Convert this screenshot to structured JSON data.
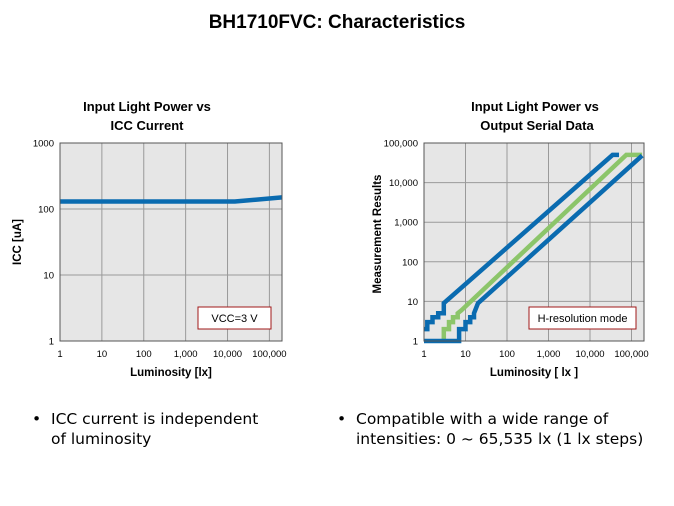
{
  "page": {
    "title": "BH1710FVC: Characteristics"
  },
  "charts": {
    "left": {
      "title_line1": "Input Light Power vs",
      "title_line2": "ICC Current",
      "ylabel": "ICC [uA]",
      "xlabel": "Luminosity [lx]",
      "annotation": "VCC=3 V",
      "x_ticks": [
        "1",
        "10",
        "100",
        "1,000",
        "10,000",
        "100,000"
      ],
      "y_ticks": [
        "1",
        "10",
        "100",
        "1000"
      ]
    },
    "right": {
      "title_line1": "Input Light Power  vs",
      "title_line2": "Output Serial Data",
      "ylabel": "Measurement Results",
      "xlabel": "Luminosity [ lx ]",
      "annotation": "H-resolution mode",
      "x_ticks": [
        "1",
        "10",
        "100",
        "1,000",
        "10,000",
        "100,000"
      ],
      "y_ticks": [
        "1",
        "10",
        "100",
        "1,000",
        "10,000",
        "100,000"
      ]
    }
  },
  "colors": {
    "blue": "#0a6bb0",
    "green": "#8cc56a",
    "grid": "#9a9a9a",
    "plot_bg": "#e6e6e6",
    "annotation_border": "#a01818"
  },
  "chart_data": [
    {
      "type": "line",
      "title": "Input Light Power vs ICC Current",
      "xlabel": "Luminosity [lx]",
      "ylabel": "ICC [uA]",
      "xscale": "log",
      "yscale": "log",
      "xlim": [
        1,
        200000
      ],
      "ylim": [
        1,
        1000
      ],
      "grid": true,
      "series": [
        {
          "x": [
            1,
            15000,
            200000
          ],
          "y": [
            130,
            130,
            150
          ]
        }
      ],
      "annotations": [
        "VCC=3 V"
      ]
    },
    {
      "type": "line",
      "title": "Input Light Power  vs Output Serial Data",
      "xlabel": "Luminosity [ lx ]",
      "ylabel": "Measurement Results",
      "xscale": "log",
      "yscale": "log",
      "xlim": [
        1,
        200000
      ],
      "ylim": [
        1,
        100000
      ],
      "grid": true,
      "series": [
        {
          "color": "#0a6bb0",
          "x": [
            1,
            1.2,
            1.2,
            1.6,
            1.6,
            2.2,
            2.2,
            3,
            3,
            35000,
            50000,
            50000
          ],
          "y": [
            2,
            2,
            3,
            3,
            4,
            4,
            5,
            5,
            9,
            50000,
            50000,
            50000
          ]
        },
        {
          "color": "#8cc56a",
          "x": [
            3,
            3,
            4,
            4,
            5,
            5,
            6.5,
            6.5,
            8,
            75000,
            110000,
            180000
          ],
          "y": [
            1,
            2,
            2,
            3,
            3,
            4,
            4,
            5,
            6,
            50000,
            50000,
            50000
          ]
        },
        {
          "color": "#0a6bb0",
          "x": [
            1,
            7,
            7,
            10,
            10,
            13,
            13,
            16,
            16,
            20,
            180000
          ],
          "y": [
            1,
            1,
            2,
            2,
            3,
            3,
            4,
            4,
            5,
            9,
            48000
          ]
        }
      ],
      "annotations": [
        "H-resolution mode"
      ]
    }
  ],
  "bullets": {
    "left_marker": "•",
    "left_line1": "ICC current is independent",
    "left_line2": "of luminosity",
    "right_marker": "•",
    "right_line1": "Compatible with a wide range of",
    "right_line2": "intensities: 0 ~ 65,535 lx (1 lx steps)"
  }
}
